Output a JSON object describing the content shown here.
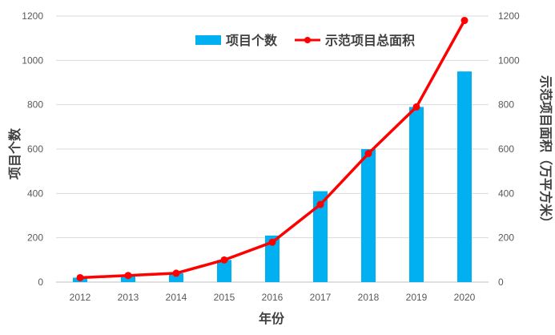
{
  "chart_data": {
    "type": "bar+line",
    "categories": [
      "2012",
      "2013",
      "2014",
      "2015",
      "2016",
      "2017",
      "2018",
      "2019",
      "2020"
    ],
    "series": [
      {
        "name": "项目个数",
        "type": "bar",
        "axis": "left",
        "color": "#00b0f0",
        "values": [
          20,
          30,
          40,
          100,
          210,
          410,
          600,
          790,
          950
        ]
      },
      {
        "name": "示范项目总面积",
        "type": "line",
        "axis": "right",
        "color": "#ff0000",
        "values": [
          20,
          30,
          40,
          100,
          180,
          350,
          580,
          790,
          1180
        ]
      }
    ],
    "xlabel": "年份",
    "ylabel_left": "项目个数",
    "ylabel_right": "示范项目面积（万平方米）",
    "ylim_left": [
      0,
      1200
    ],
    "ylim_right": [
      0,
      1200
    ],
    "yticks_left": [
      "0",
      "200",
      "400",
      "600",
      "800",
      "1000",
      "1200"
    ],
    "yticks_right": [
      "0",
      "200",
      "400",
      "600",
      "800",
      "1000",
      "1200"
    ],
    "grid": true,
    "legend_position": "top-center"
  }
}
